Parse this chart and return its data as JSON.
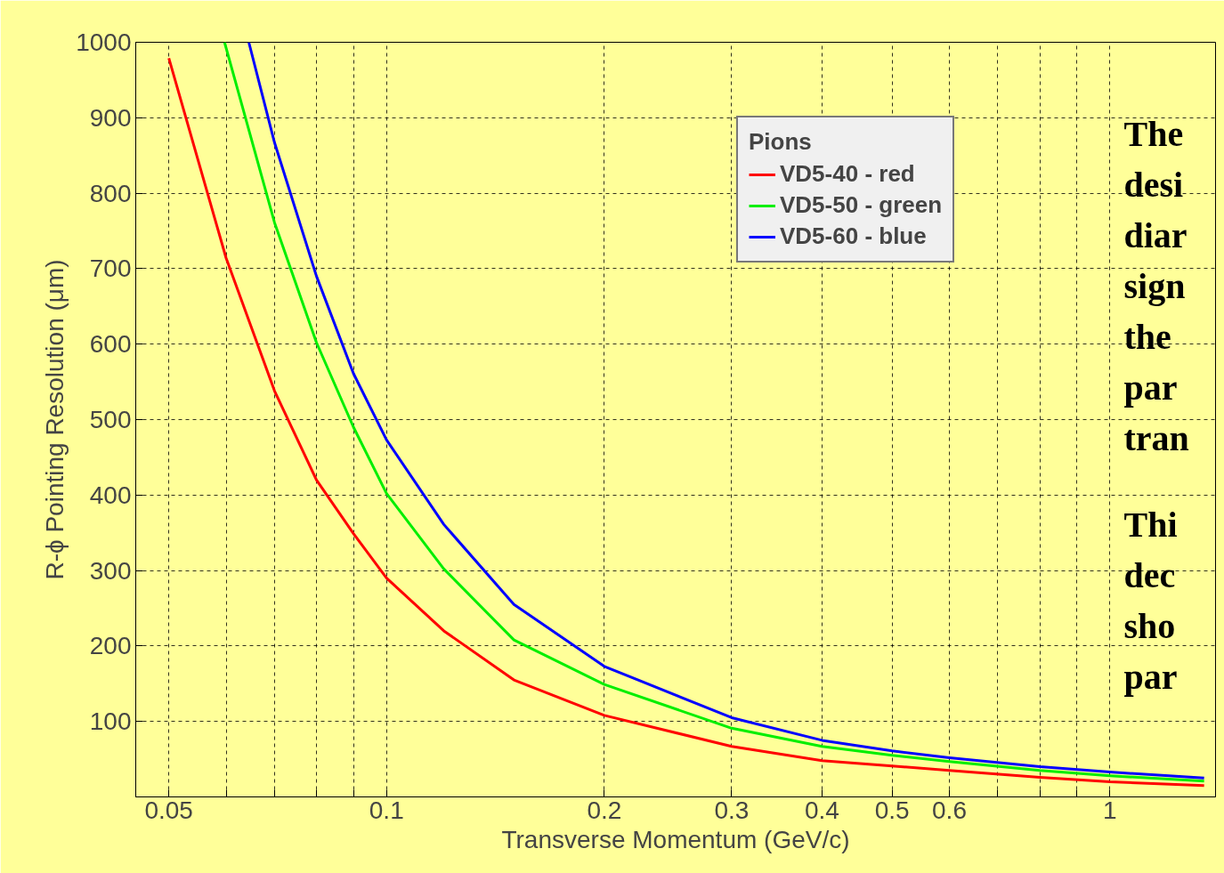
{
  "chart_data": {
    "type": "line",
    "xlabel": "Transverse Momentum (GeV/c)",
    "ylabel": "R-ϕ Pointing Resolution (μm)",
    "legend_title": "Pions",
    "log": "x",
    "grid": true,
    "legend": "top right",
    "line_style": "solid",
    "marker": "none",
    "xlim": [
      0.045,
      1.4
    ],
    "ylim": [
      0,
      1000
    ],
    "xticks": [
      0.05,
      {
        "value": 0.06,
        "label": null
      },
      {
        "value": 0.07,
        "label": null
      },
      {
        "value": 0.08,
        "label": null
      },
      {
        "value": 0.09,
        "label": null
      },
      0.1,
      0.2,
      0.3,
      0.4,
      0.5,
      0.6,
      {
        "value": 0.7,
        "label": null
      },
      {
        "value": 0.8,
        "label": null
      },
      {
        "value": 0.9,
        "label": null
      },
      1
    ],
    "yticks": [
      100,
      200,
      300,
      400,
      500,
      600,
      700,
      800,
      900,
      1000
    ],
    "series": [
      {
        "name": "VD5-40 - red",
        "color": "#ff0000",
        "x": [
          0.05,
          0.06,
          0.07,
          0.08,
          0.09,
          0.1,
          0.12,
          0.15,
          0.2,
          0.3,
          0.4,
          0.5,
          0.6,
          0.8,
          1.0,
          1.35
        ],
        "values": [
          979,
          714,
          538,
          420,
          349,
          290,
          220,
          155,
          108,
          67,
          48,
          41,
          35,
          26,
          20,
          15
        ]
      },
      {
        "name": "VD5-50 - green",
        "color": "#00ee00",
        "x": [
          0.0597,
          0.07,
          0.08,
          0.09,
          0.1,
          0.12,
          0.15,
          0.2,
          0.3,
          0.4,
          0.5,
          0.6,
          0.8,
          1.0,
          1.35
        ],
        "values": [
          1000,
          761,
          602,
          490,
          402,
          302,
          208,
          149,
          91,
          67,
          55,
          47,
          35,
          28,
          21
        ]
      },
      {
        "name": "VD5-60 - blue",
        "color": "#0000ff",
        "x": [
          0.0645,
          0.07,
          0.08,
          0.09,
          0.1,
          0.12,
          0.15,
          0.2,
          0.3,
          0.4,
          0.5,
          0.6,
          0.8,
          1.0,
          1.35
        ],
        "values": [
          1000,
          867,
          690,
          561,
          473,
          361,
          255,
          173,
          105,
          75,
          61,
          52,
          40,
          33,
          25
        ]
      }
    ],
    "annotations": [
      "The",
      "desi",
      "diar",
      "sign",
      "the",
      "par",
      "tran",
      "Thi",
      "dec",
      "sho",
      "par"
    ]
  }
}
